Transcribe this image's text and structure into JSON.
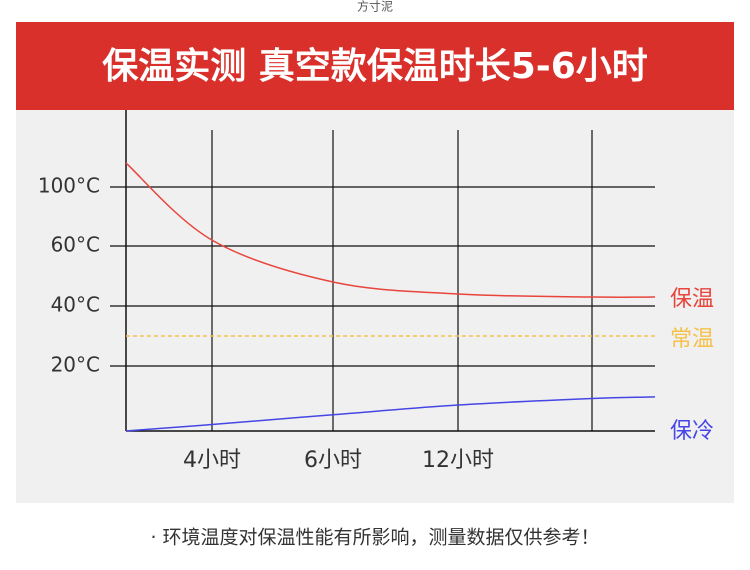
{
  "watermark": "方寸泥",
  "chart_data": {
    "type": "line",
    "title": "保温实测 真空款保温时长5-6小时",
    "categories": [
      null,
      "4小时",
      "6小时",
      "12小时",
      null,
      null
    ],
    "series": [
      {
        "name": "保温",
        "color": "#e8453c",
        "values": [
          116,
          64,
          48,
          44,
          43,
          43
        ]
      },
      {
        "name": "常温",
        "color": "#f6c14b",
        "dashed": true,
        "values": [
          30,
          30,
          30,
          30,
          30,
          30
        ]
      },
      {
        "name": "保冷",
        "color": "#4646e6",
        "values": [
          0,
          2,
          5,
          8,
          10,
          10.5
        ]
      }
    ],
    "ylim": [
      0,
      150
    ],
    "yticks": [
      {
        "value": 20,
        "label": "20°C"
      },
      {
        "value": 40,
        "label": "40°C"
      },
      {
        "value": 60,
        "label": "60°C"
      },
      {
        "value": 100,
        "label": "100°C"
      }
    ],
    "grid": true
  },
  "footnote": "· 环境温度对保温性能有所影响，测量数据仅供参考！"
}
